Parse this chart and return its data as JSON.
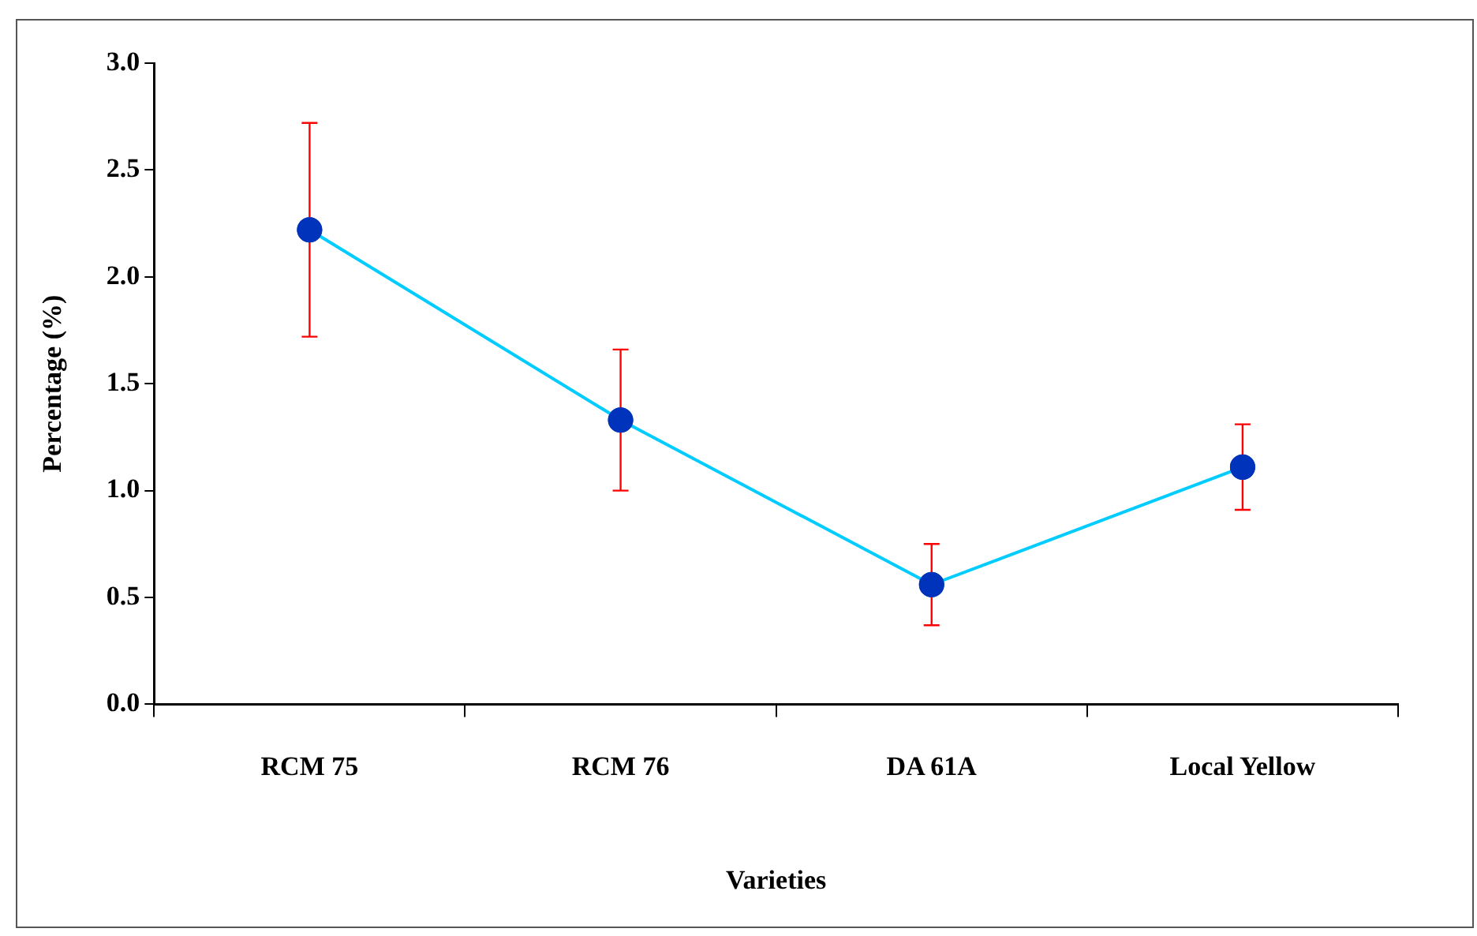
{
  "chart_data": {
    "type": "line",
    "xlabel": "Varieties",
    "ylabel": "Percentage (%)",
    "categories": [
      "RCM 75",
      "RCM 76",
      "DA 61A",
      "Local Yellow"
    ],
    "series": [
      {
        "color": "#00ccff",
        "values": [
          2.22,
          1.33,
          0.56,
          1.11
        ],
        "errors": [
          0.5,
          0.33,
          0.19,
          0.2
        ]
      }
    ],
    "ylim": [
      0,
      3
    ],
    "yticks": [
      {
        "value": 0,
        "label": "0.0"
      },
      {
        "value": 0.5,
        "label": "0.5"
      },
      {
        "value": 1,
        "label": "1.0"
      },
      {
        "value": 1.5,
        "label": "1.5"
      },
      {
        "value": 2,
        "label": "2.0"
      },
      {
        "value": 2.5,
        "label": "2.5"
      },
      {
        "value": 3,
        "label": "3.0"
      }
    ],
    "grid": false,
    "legend": false,
    "marker": "circle",
    "line_style": "solid"
  }
}
